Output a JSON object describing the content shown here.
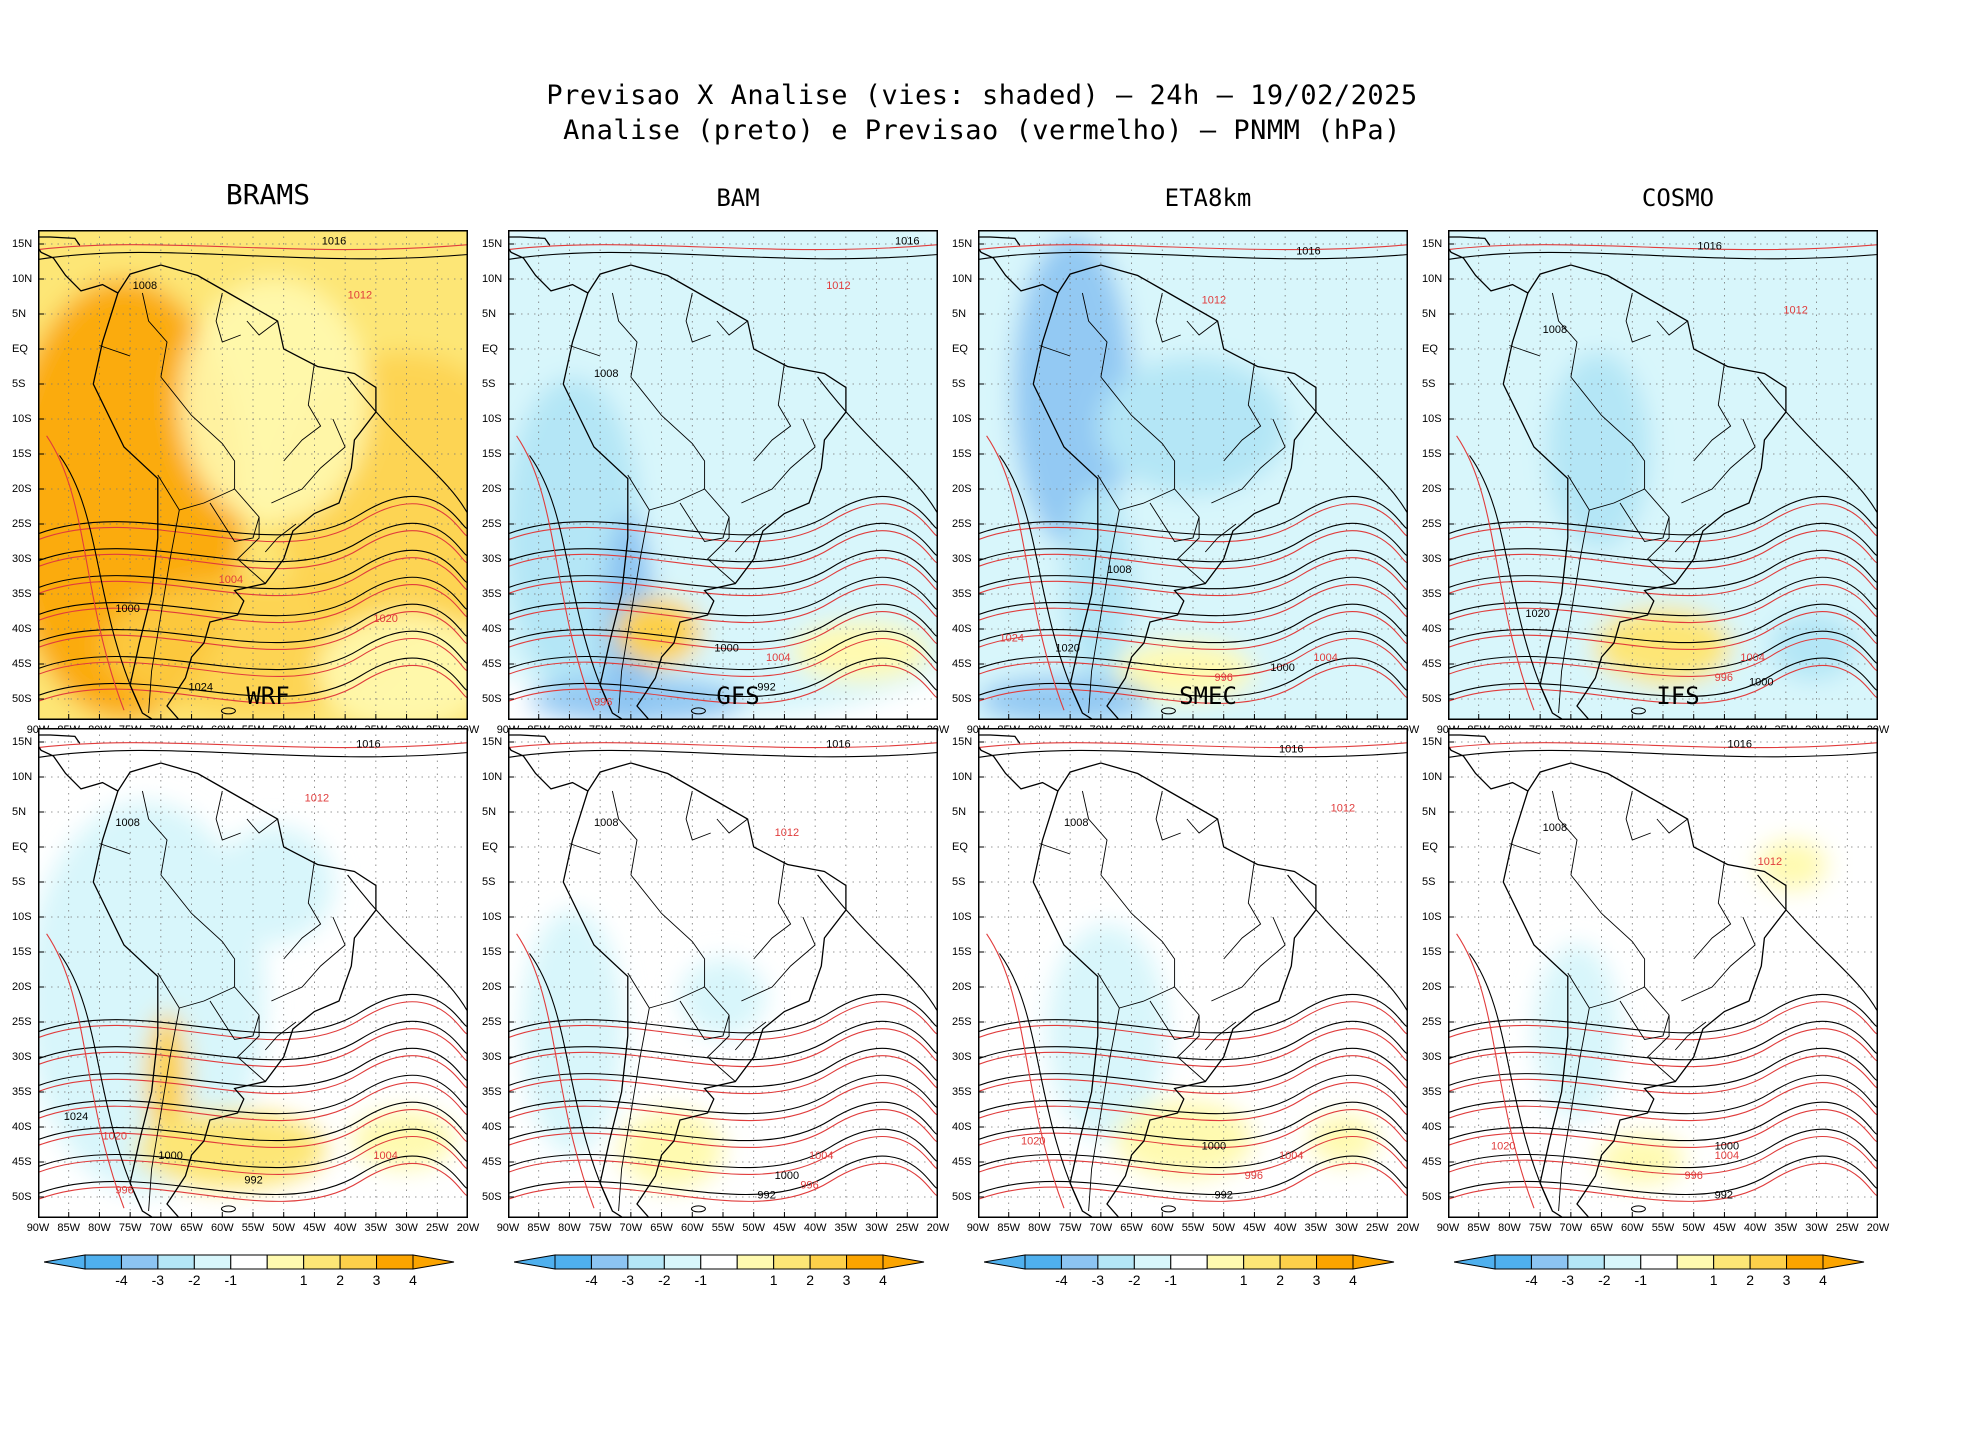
{
  "title": {
    "line1": "Previsao X Analise (vies: shaded) – 24h – 19/02/2025",
    "line2": "Analise (preto) e Previsao (vermelho) – PNMM (hPa)"
  },
  "y_labels": [
    "15N",
    "10N",
    "5N",
    "EQ",
    "5S",
    "10S",
    "15S",
    "20S",
    "25S",
    "30S",
    "35S",
    "40S",
    "45S",
    "50S"
  ],
  "x_labels": [
    "90W",
    "85W",
    "80W",
    "75W",
    "70W",
    "65W",
    "60W",
    "55W",
    "50W",
    "45W",
    "40W",
    "35W",
    "30W",
    "25W",
    "20W"
  ],
  "colorbar_labels": [
    "-4",
    "-3",
    "-2",
    "-1",
    "1",
    "2",
    "3",
    "4"
  ],
  "colors": {
    "bias_neg4": "#4fb0ee",
    "bias_neg3": "#8cc4f2",
    "bias_neg2": "#b4e6f6",
    "bias_neg1": "#d8f6fb",
    "bias_pos1": "#fffab0",
    "bias_pos2": "#fde676",
    "bias_pos3": "#fdd04a",
    "bias_pos4": "#fba400",
    "analysis_contour": "#000000",
    "forecast_contour": "#e03c3c"
  },
  "panels": [
    {
      "model": "BRAMS",
      "contour_labels": [
        "1016",
        "1012",
        "1008",
        "1004",
        "1000",
        "1020",
        "1024"
      ]
    },
    {
      "model": "BAM",
      "contour_labels": [
        "1016",
        "1012",
        "1008",
        "1004",
        "1000",
        "996",
        "992"
      ]
    },
    {
      "model": "ETA8km",
      "contour_labels": [
        "1016",
        "1012",
        "1008",
        "1004",
        "1000",
        "996",
        "1020",
        "1024"
      ]
    },
    {
      "model": "COSMO",
      "contour_labels": [
        "1016",
        "1012",
        "1008",
        "1004",
        "1000",
        "996",
        "1020"
      ]
    },
    {
      "model": "WRF",
      "contour_labels": [
        "1016",
        "1012",
        "1008",
        "1004",
        "1000",
        "996",
        "992",
        "1020",
        "1024"
      ]
    },
    {
      "model": "GFS",
      "contour_labels": [
        "1016",
        "1012",
        "1008",
        "1004",
        "1000",
        "996",
        "992"
      ]
    },
    {
      "model": "SMEC",
      "contour_labels": [
        "1016",
        "1012",
        "1008",
        "1004",
        "1000",
        "996",
        "992",
        "1020"
      ]
    },
    {
      "model": "IFS",
      "contour_labels": [
        "1016",
        "1012",
        "1008",
        "1004",
        "1000",
        "996",
        "992",
        "1020"
      ]
    }
  ]
}
